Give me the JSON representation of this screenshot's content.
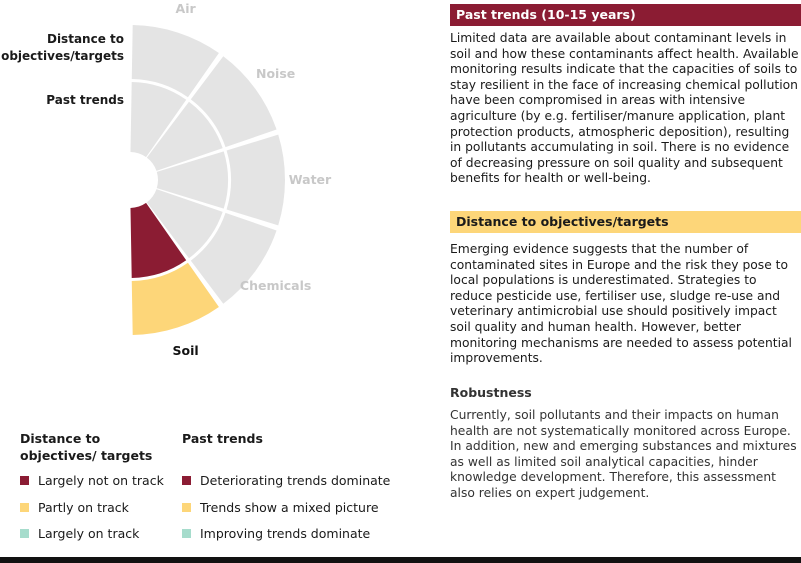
{
  "chart_data": {
    "type": "sunburst-wheel",
    "ring_labels": {
      "outer": "Distance to objectives/targets",
      "inner": "Past trends"
    },
    "segments": [
      {
        "name": "Air",
        "outer_status": "none",
        "inner_status": "none",
        "highlight": false
      },
      {
        "name": "Noise",
        "outer_status": "none",
        "inner_status": "none",
        "highlight": false
      },
      {
        "name": "Water",
        "outer_status": "none",
        "inner_status": "none",
        "highlight": false
      },
      {
        "name": "Chemicals",
        "outer_status": "none",
        "inner_status": "none",
        "highlight": false
      },
      {
        "name": "Soil",
        "outer_status": "Partly on track",
        "inner_status": "Deteriorating trends dominate",
        "highlight": true
      }
    ]
  },
  "colors": {
    "deteriorating": "#8b1c33",
    "mixed": "#fdd679",
    "improving": "#a6dccc",
    "neutral": "#e4e4e4",
    "label_faint": "#c8c8c8",
    "header_dark_bg": "#8b1c33",
    "header_yellow_bg": "#fdd679"
  },
  "legend": {
    "distance_heading": "Distance to objectives/ targets",
    "trends_heading": "Past trends",
    "distance_items": [
      "Largely not on track",
      "Partly on track",
      "Largely on track"
    ],
    "trends_items": [
      "Deteriorating trends dominate",
      "Trends show a mixed picture",
      "Improving trends dominate"
    ]
  },
  "panel": {
    "past_trends_header": "Past trends (10-15 years)",
    "past_trends_text": "Limited data are available about contaminant levels in soil and how these contaminants affect health. Available monitoring results indicate that the capacities of soils to stay resilient in the face of increasing chemical pollution have been compromised in areas with intensive agriculture (by e.g. fertiliser/manure application, plant protection products, atmospheric deposition), resulting in pollutants accumulating in soil. There is no evidence of decreasing pressure on soil quality and subsequent benefits for health or well-being.",
    "distance_header": "Distance to objectives/targets",
    "distance_text": "Emerging evidence suggests that the number of contaminated sites in Europe and the risk they pose to local populations is underestimated. Strategies to reduce pesticide use, fertiliser use, sludge re-use and veterinary antimicrobial use should positively impact soil quality and human health. However, better monitoring mechanisms are needed to assess potential improvements.",
    "robustness_heading": "Robustness",
    "robustness_text": "Currently, soil pollutants and their impacts on human health are not systematically monitored across Europe. In addition, new and emerging substances and mixtures as well as limited soil analytical capacities, hinder knowledge development. Therefore, this assessment also relies on expert judgement."
  }
}
